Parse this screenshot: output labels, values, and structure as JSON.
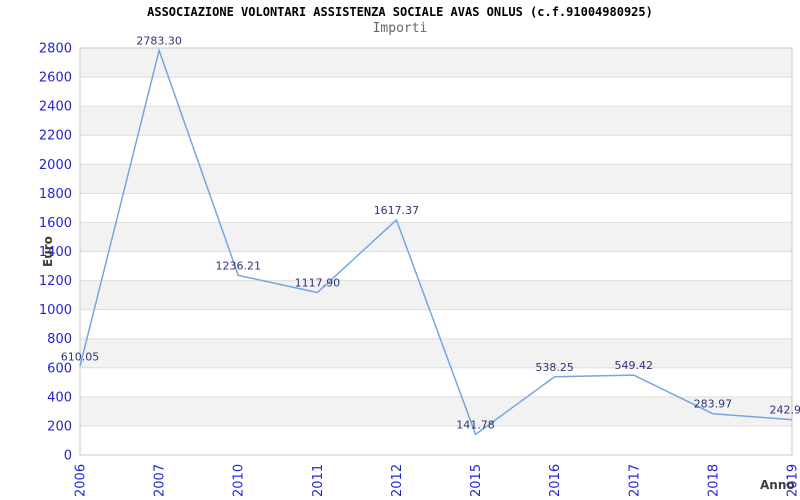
{
  "chart_data": {
    "type": "line",
    "title": "ASSOCIAZIONE VOLONTARI ASSISTENZA SOCIALE AVAS ONLUS (c.f.91004980925)",
    "subtitle": "Importi",
    "xlabel": "Anno",
    "ylabel": "Euro",
    "categories": [
      "2006",
      "2007",
      "2010",
      "2011",
      "2012",
      "2015",
      "2016",
      "2017",
      "2018",
      "2019"
    ],
    "values": [
      610.05,
      2783.3,
      1236.21,
      1117.9,
      1617.37,
      141.78,
      538.25,
      549.42,
      283.97,
      242.9
    ],
    "point_labels": [
      "610.05",
      "2783.30",
      "1236.21",
      "1117.90",
      "1617.37",
      "141.78",
      "538.25",
      "549.42",
      "283.97",
      "242.9"
    ],
    "ylim": [
      0,
      2800
    ],
    "ytick_step": 200,
    "y_tick_labels": [
      "0",
      "200",
      "400",
      "600",
      "800",
      "1000",
      "1200",
      "1400",
      "1600",
      "1800",
      "2000",
      "2200",
      "2400",
      "2600",
      "2800"
    ],
    "grid": "horizontal-with-alternating-bands",
    "legend": "none",
    "colors": {
      "line": "#74a7dd",
      "band": "#f2f2f2",
      "gridline": "#dedede",
      "plot_border": "#c9c9c9",
      "tick_label": "#2424d6",
      "value_label": "#333377",
      "title": "#000000",
      "subtitle": "#666666",
      "axis_title": "#3d3d3d",
      "background": "#ffffff"
    }
  }
}
